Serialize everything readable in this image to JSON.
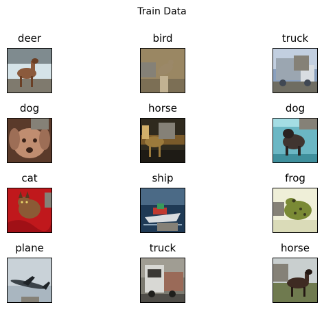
{
  "figure": {
    "title": "Train Data",
    "patch_color": "#858177",
    "images": [
      {
        "label": "deer",
        "subject": "deer",
        "colors": {
          "bg": "#7f8b8f",
          "bg2": "#d5e3e8",
          "ground": "#7f7a6e",
          "obj": "#8b5a3c",
          "accent": "#6a3f25"
        },
        "patch": false
      },
      {
        "label": "bird",
        "subject": "bird",
        "colors": {
          "bg": "#9a8763",
          "bg2": "#7c6f55",
          "ground": "#6d5d42",
          "obj": "#9b8868",
          "accent": "#c2b292"
        },
        "patch": true
      },
      {
        "label": "truck",
        "subject": "truck",
        "colors": {
          "bg": "#c2cfe0",
          "bg2": "#8aa0be",
          "ground": "#6f6d62",
          "obj": "#9ba6b1",
          "accent": "#404854"
        },
        "patch": true
      },
      {
        "label": "dog",
        "subject": "dog-face",
        "colors": {
          "bg": "#5a3a2a",
          "bg2": "#9d6e56",
          "ground": "#4a2f22",
          "obj": "#c08d70",
          "accent": "#3a2218"
        },
        "patch": true
      },
      {
        "label": "horse",
        "subject": "horse-dark",
        "colors": {
          "bg": "#2f2a1e",
          "bg2": "#7a5a2a",
          "ground": "#1e1b15",
          "obj": "#9c7a3c",
          "accent": "#d2b06a"
        },
        "patch": true
      },
      {
        "label": "dog",
        "subject": "dog-pool",
        "colors": {
          "bg": "#6bb7c4",
          "bg2": "#a4dde4",
          "ground": "#3f8f9c",
          "obj": "#403530",
          "accent": "#2a2220"
        },
        "patch": true
      },
      {
        "label": "cat",
        "subject": "cat",
        "colors": {
          "bg": "#c0181c",
          "bg2": "#e83a3a",
          "ground": "#a01016",
          "obj": "#8b5a35",
          "accent": "#5a3820"
        },
        "patch": true
      },
      {
        "label": "ship",
        "subject": "ship",
        "colors": {
          "bg": "#1f3a55",
          "bg2": "#4b6a86",
          "ground": "#2a3f52",
          "obj": "#d9dde0",
          "accent": "#c03a30"
        },
        "patch": true
      },
      {
        "label": "frog",
        "subject": "frog",
        "colors": {
          "bg": "#efefd8",
          "bg2": "#dadbb8",
          "ground": "#c9c8a6",
          "obj": "#7a8a35",
          "accent": "#3a3a1e"
        },
        "patch": true
      },
      {
        "label": "plane",
        "subject": "plane",
        "colors": {
          "bg": "#a9b6c0",
          "bg2": "#c9d2d8",
          "ground": "#8c969e",
          "obj": "#3a4248",
          "accent": "#1f2428"
        },
        "patch": true
      },
      {
        "label": "truck",
        "subject": "truck-front",
        "colors": {
          "bg": "#7c7a70",
          "bg2": "#a09d93",
          "ground": "#4f4d48",
          "obj": "#d8d8d4",
          "accent": "#3a3834"
        },
        "patch": false
      },
      {
        "label": "horse",
        "subject": "horse-field",
        "colors": {
          "bg": "#c9cfcf",
          "bg2": "#9aa6a6",
          "ground": "#6f7a4f",
          "obj": "#3e2a22",
          "accent": "#241813"
        },
        "patch": true
      }
    ]
  }
}
